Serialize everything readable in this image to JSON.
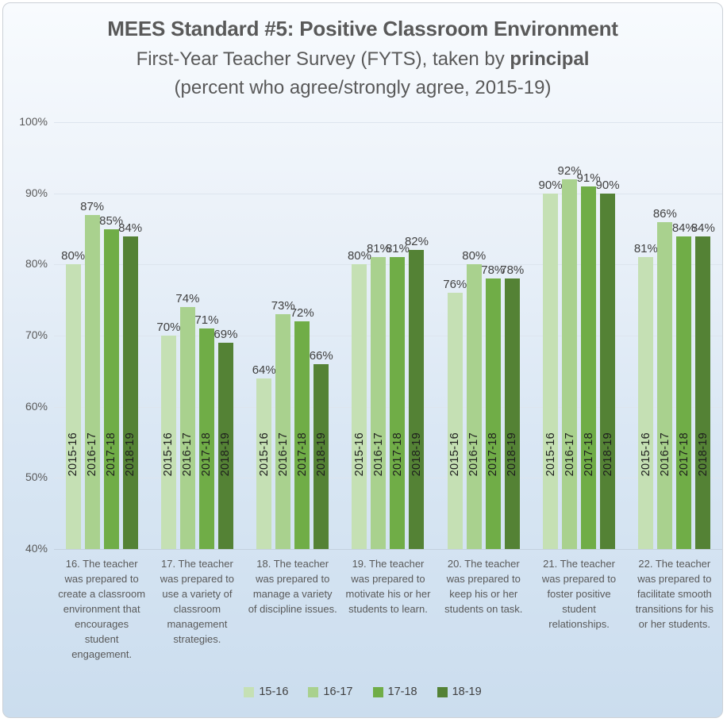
{
  "chart_data": {
    "type": "bar",
    "title": "MEES Standard #5: Positive Classroom Environment",
    "subtitle_prefix": "First-Year Teacher Survey (FYTS), taken by ",
    "subtitle_bold": "principal",
    "subtitle2": "(percent who agree/strongly agree, 2015-19)",
    "ylim": [
      40,
      100
    ],
    "yticks": [
      "100%",
      "90%",
      "80%",
      "70%",
      "60%",
      "50%",
      "40%"
    ],
    "value_suffix": "%",
    "grid": true,
    "legend_position": "bottom",
    "background_gradient": [
      "#f8fbfe",
      "#cbddee"
    ],
    "categories": [
      "16. The teacher was prepared to create a classroom environment that encourages student engagement.",
      "17. The teacher was prepared to use a variety of classroom management strategies.",
      "18. The teacher was prepared to manage a variety of discipline issues.",
      "19. The teacher was prepared to motivate his or her students to learn.",
      "20. The teacher was prepared to keep his or her students on task.",
      "21. The teacher was prepared to foster positive student relationships.",
      "22. The teacher was prepared to facilitate smooth transitions for his or her students."
    ],
    "series": [
      {
        "name": "15-16",
        "bar_label": "2015-16",
        "color": "#C5E0B4",
        "values": [
          80,
          70,
          64,
          80,
          76,
          90,
          81
        ]
      },
      {
        "name": "16-17",
        "bar_label": "2016-17",
        "color": "#A9D18E",
        "values": [
          87,
          74,
          73,
          81,
          80,
          92,
          86
        ]
      },
      {
        "name": "17-18",
        "bar_label": "2017-18",
        "color": "#70AD47",
        "values": [
          85,
          71,
          72,
          81,
          78,
          91,
          84
        ]
      },
      {
        "name": "18-19",
        "bar_label": "2018-19",
        "color": "#548235",
        "values": [
          84,
          69,
          66,
          82,
          78,
          90,
          84
        ]
      }
    ]
  }
}
